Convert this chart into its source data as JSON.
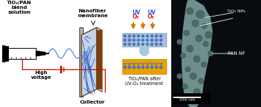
{
  "bg_color": "#ffffff",
  "labels": {
    "tio2_pan": "TiO₂/PAN\nblend\nsolution",
    "nanofiber": "Nanofiber\nmembrane",
    "uv1": "UV",
    "uv2": "UV",
    "o3_1": "O₃",
    "o3_2": "O₃",
    "after_label": "TiO₂/PAN after\nUV-O₃ treatment",
    "high_voltage": "High\nvoltage",
    "collector": "Collector",
    "tio2_nps": "TiO₂ NPs",
    "pan_nf": "PAN NF",
    "scale_bar": "200 nm"
  },
  "colors": {
    "white": "#ffffff",
    "black": "#000000",
    "blue_fiber": "#3355cc",
    "brown": "#7a3a10",
    "mem_face": "#c8d4e4",
    "uv_gold": "#e07800",
    "o3_red": "#dd1100",
    "uv_blue": "#2255ff",
    "dot_blue": "#4477bb",
    "dot_gold": "#e8a000",
    "mem_gold_bg": "#e8a000",
    "mem_blue_bg": "#aabbdd",
    "arrow_fill": "#a8c8e0",
    "connector_red": "#cc1100",
    "sem_bg": "#111111",
    "fiber_color": "#7a9e9b",
    "fiber_dark": "#4a6e6b",
    "scale_white": "#ffffff"
  }
}
